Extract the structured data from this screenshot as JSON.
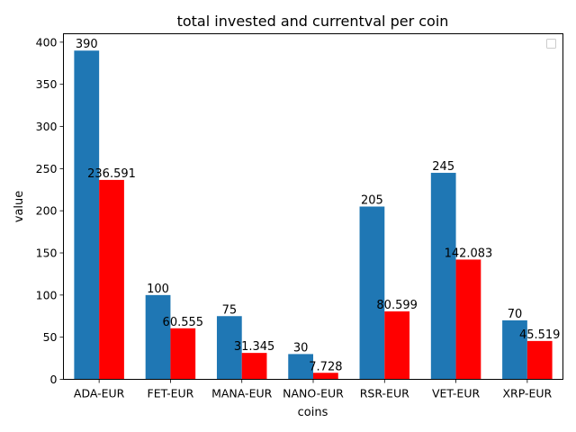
{
  "chart_data": {
    "type": "bar",
    "title": "total invested and currentval per coin",
    "xlabel": "coins",
    "ylabel": "value",
    "categories": [
      "ADA-EUR",
      "FET-EUR",
      "MANA-EUR",
      "NANO-EUR",
      "RSR-EUR",
      "VET-EUR",
      "XRP-EUR"
    ],
    "series": [
      {
        "values": [
          390,
          100,
          75,
          30,
          205,
          245,
          70
        ],
        "labels": [
          "390",
          "100",
          "75",
          "30",
          "205",
          "245",
          "70"
        ],
        "color": "#1f77b4"
      },
      {
        "values": [
          236.591,
          60.555,
          31.345,
          7.728,
          80.599,
          142.083,
          45.519
        ],
        "labels": [
          "236.591",
          "60.555",
          "31.345",
          "7.728",
          "80.599",
          "142.083",
          "45.519"
        ],
        "color": "#ff0000"
      }
    ],
    "ylim": [
      0,
      410
    ],
    "yticks": [
      0,
      50,
      100,
      150,
      200,
      250,
      300,
      350,
      400
    ],
    "grid": false,
    "legend": {
      "position": "top-right",
      "entries": []
    }
  }
}
